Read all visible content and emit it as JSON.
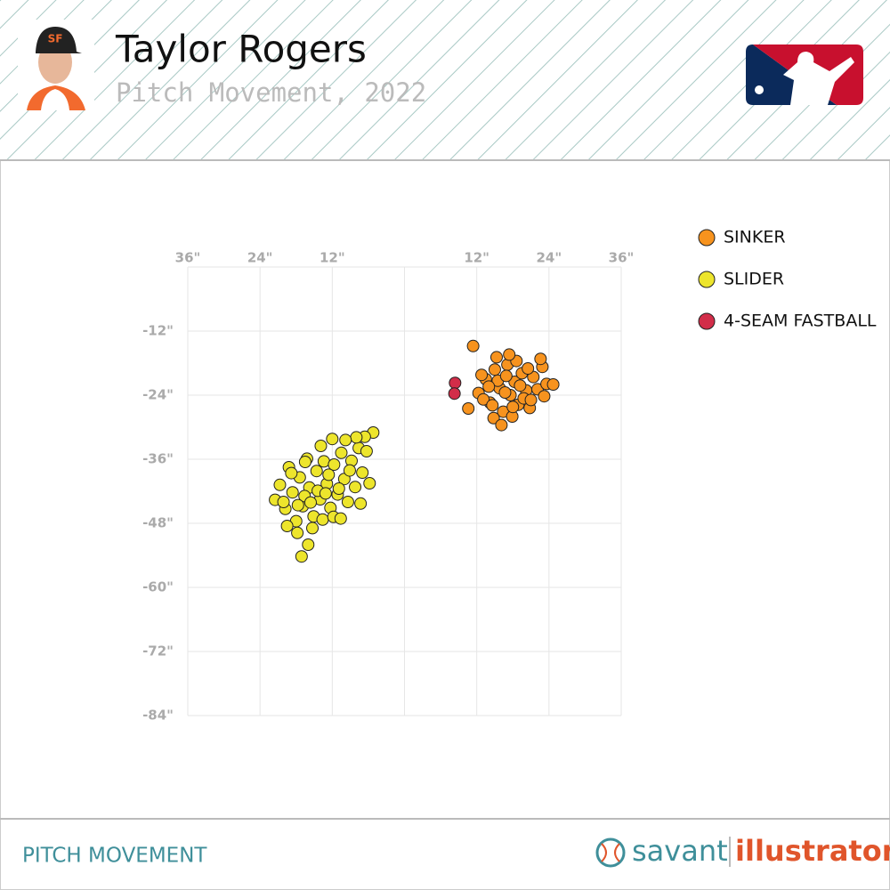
{
  "chart_data": {
    "type": "scatter",
    "title": "Taylor Rogers",
    "subtitle": "Pitch Movement, 2022",
    "footer": "PITCH MOVEMENT",
    "brand": [
      "savant",
      "illustrator"
    ],
    "xlim": [
      -36,
      36
    ],
    "ylim": [
      -84,
      0
    ],
    "grid": true,
    "legend": "top-right",
    "xticks": [
      {
        "value": -36,
        "label": "36\""
      },
      {
        "value": -24,
        "label": "24\""
      },
      {
        "value": -12,
        "label": "12\""
      },
      {
        "value": 0,
        "label": null
      },
      {
        "value": 12,
        "label": "12\""
      },
      {
        "value": 24,
        "label": "24\""
      },
      {
        "value": 36,
        "label": "36\""
      }
    ],
    "yticks": [
      {
        "value": 0,
        "label": null
      },
      {
        "value": -12,
        "label": "-12\""
      },
      {
        "value": -24,
        "label": "-24\""
      },
      {
        "value": -36,
        "label": "-36\""
      },
      {
        "value": -48,
        "label": "-48\""
      },
      {
        "value": -60,
        "label": "-60\""
      },
      {
        "value": -72,
        "label": "-72\""
      },
      {
        "value": -84,
        "label": "-84\""
      }
    ],
    "series": [
      {
        "name": "SINKER",
        "color": "#f7931e",
        "x": [
          11.4,
          10.6,
          12.3,
          13.5,
          14.2,
          15.0,
          15.8,
          16.4,
          17.1,
          17.6,
          18.3,
          18.9,
          19.5,
          20.2,
          20.8,
          21.4,
          22.1,
          22.9,
          23.6,
          24.7,
          14.8,
          16.1,
          17.9,
          13.1,
          15.5,
          16.9,
          18.6,
          19.8,
          21.0,
          22.6,
          12.8,
          14.0,
          16.7,
          18.0,
          19.2,
          20.5,
          15.3,
          17.4,
          14.6,
          23.2
        ],
        "values": [
          -14.8,
          -26.5,
          -23.6,
          -21.0,
          -25.4,
          -19.2,
          -22.7,
          -27.1,
          -18.3,
          -24.0,
          -21.5,
          -25.8,
          -19.9,
          -23.1,
          -26.4,
          -20.6,
          -22.9,
          -18.7,
          -21.9,
          -22.0,
          -28.3,
          -29.6,
          -28.0,
          -24.8,
          -21.3,
          -20.4,
          -17.6,
          -24.6,
          -24.9,
          -17.2,
          -20.2,
          -22.4,
          -23.5,
          -26.2,
          -22.2,
          -19.0,
          -16.9,
          -16.4,
          -25.9,
          -24.2
        ]
      },
      {
        "name": "SLIDER",
        "color": "#ede52c",
        "x": [
          -17.1,
          -21.5,
          -20.7,
          -19.8,
          -19.2,
          -18.6,
          -18.0,
          -17.4,
          -16.9,
          -16.2,
          -15.8,
          -15.1,
          -14.6,
          -14.0,
          -13.4,
          -12.9,
          -12.3,
          -11.7,
          -11.1,
          -10.5,
          -10.0,
          -9.4,
          -8.8,
          -8.2,
          -7.6,
          -7.0,
          -6.3,
          -5.2,
          -6.6,
          -5.8,
          -8.0,
          -9.8,
          -12.0,
          -13.9,
          -16.5,
          -18.8,
          -20.1,
          -19.5,
          -17.8,
          -16.0,
          -15.3,
          -13.6,
          -11.8,
          -10.6,
          -14.4,
          -12.6,
          -16.6,
          -9.1,
          -10.9,
          -7.3,
          -17.7,
          -15.6,
          -13.1
        ],
        "values": [
          -54.2,
          -43.6,
          -40.8,
          -45.3,
          -37.5,
          -42.2,
          -47.6,
          -39.4,
          -44.8,
          -35.9,
          -41.3,
          -46.7,
          -38.2,
          -43.5,
          -36.4,
          -40.6,
          -45.1,
          -37.0,
          -42.6,
          -34.8,
          -39.7,
          -44.0,
          -36.3,
          -41.2,
          -33.9,
          -38.5,
          -34.5,
          -31.0,
          -31.8,
          -40.5,
          -31.9,
          -32.4,
          -32.2,
          -33.5,
          -36.5,
          -38.6,
          -44.0,
          -48.5,
          -49.8,
          -52.0,
          -48.9,
          -47.3,
          -46.8,
          -47.1,
          -41.9,
          -38.9,
          -42.9,
          -38.1,
          -41.5,
          -44.3,
          -44.6,
          -44.1,
          -42.4
        ]
      },
      {
        "name": "4-SEAM FASTBALL",
        "color": "#d22d49",
        "x": [
          8.4,
          8.3
        ],
        "values": [
          -21.7,
          -23.7
        ]
      }
    ]
  }
}
